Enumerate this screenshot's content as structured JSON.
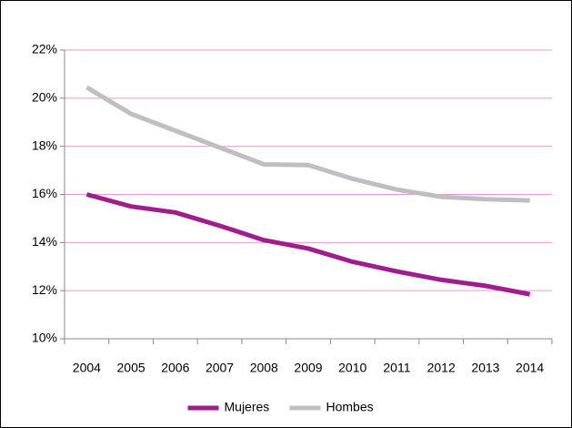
{
  "chart_data": {
    "type": "line",
    "categories": [
      "2004",
      "2005",
      "2006",
      "2007",
      "2008",
      "2009",
      "2010",
      "2011",
      "2012",
      "2013",
      "2014"
    ],
    "series": [
      {
        "name": "Mujeres",
        "color": "#9e1f8c",
        "values": [
          16.0,
          15.5,
          15.25,
          14.7,
          14.1,
          13.75,
          13.2,
          12.8,
          12.45,
          12.2,
          11.85
        ]
      },
      {
        "name": "Hombes",
        "color": "#bfbfbf",
        "values": [
          20.45,
          19.35,
          18.65,
          17.95,
          17.25,
          17.22,
          16.65,
          16.2,
          15.9,
          15.8,
          15.75
        ]
      }
    ],
    "ylim": [
      10,
      22
    ],
    "yticks": [
      {
        "value": 10,
        "label": "10%"
      },
      {
        "value": 12,
        "label": "12%"
      },
      {
        "value": 14,
        "label": "14%"
      },
      {
        "value": 16,
        "label": "16%"
      },
      {
        "value": 18,
        "label": "18%"
      },
      {
        "value": 20,
        "label": "20%"
      },
      {
        "value": 22,
        "label": "22%"
      }
    ],
    "grid": true,
    "legend": "bottom"
  }
}
